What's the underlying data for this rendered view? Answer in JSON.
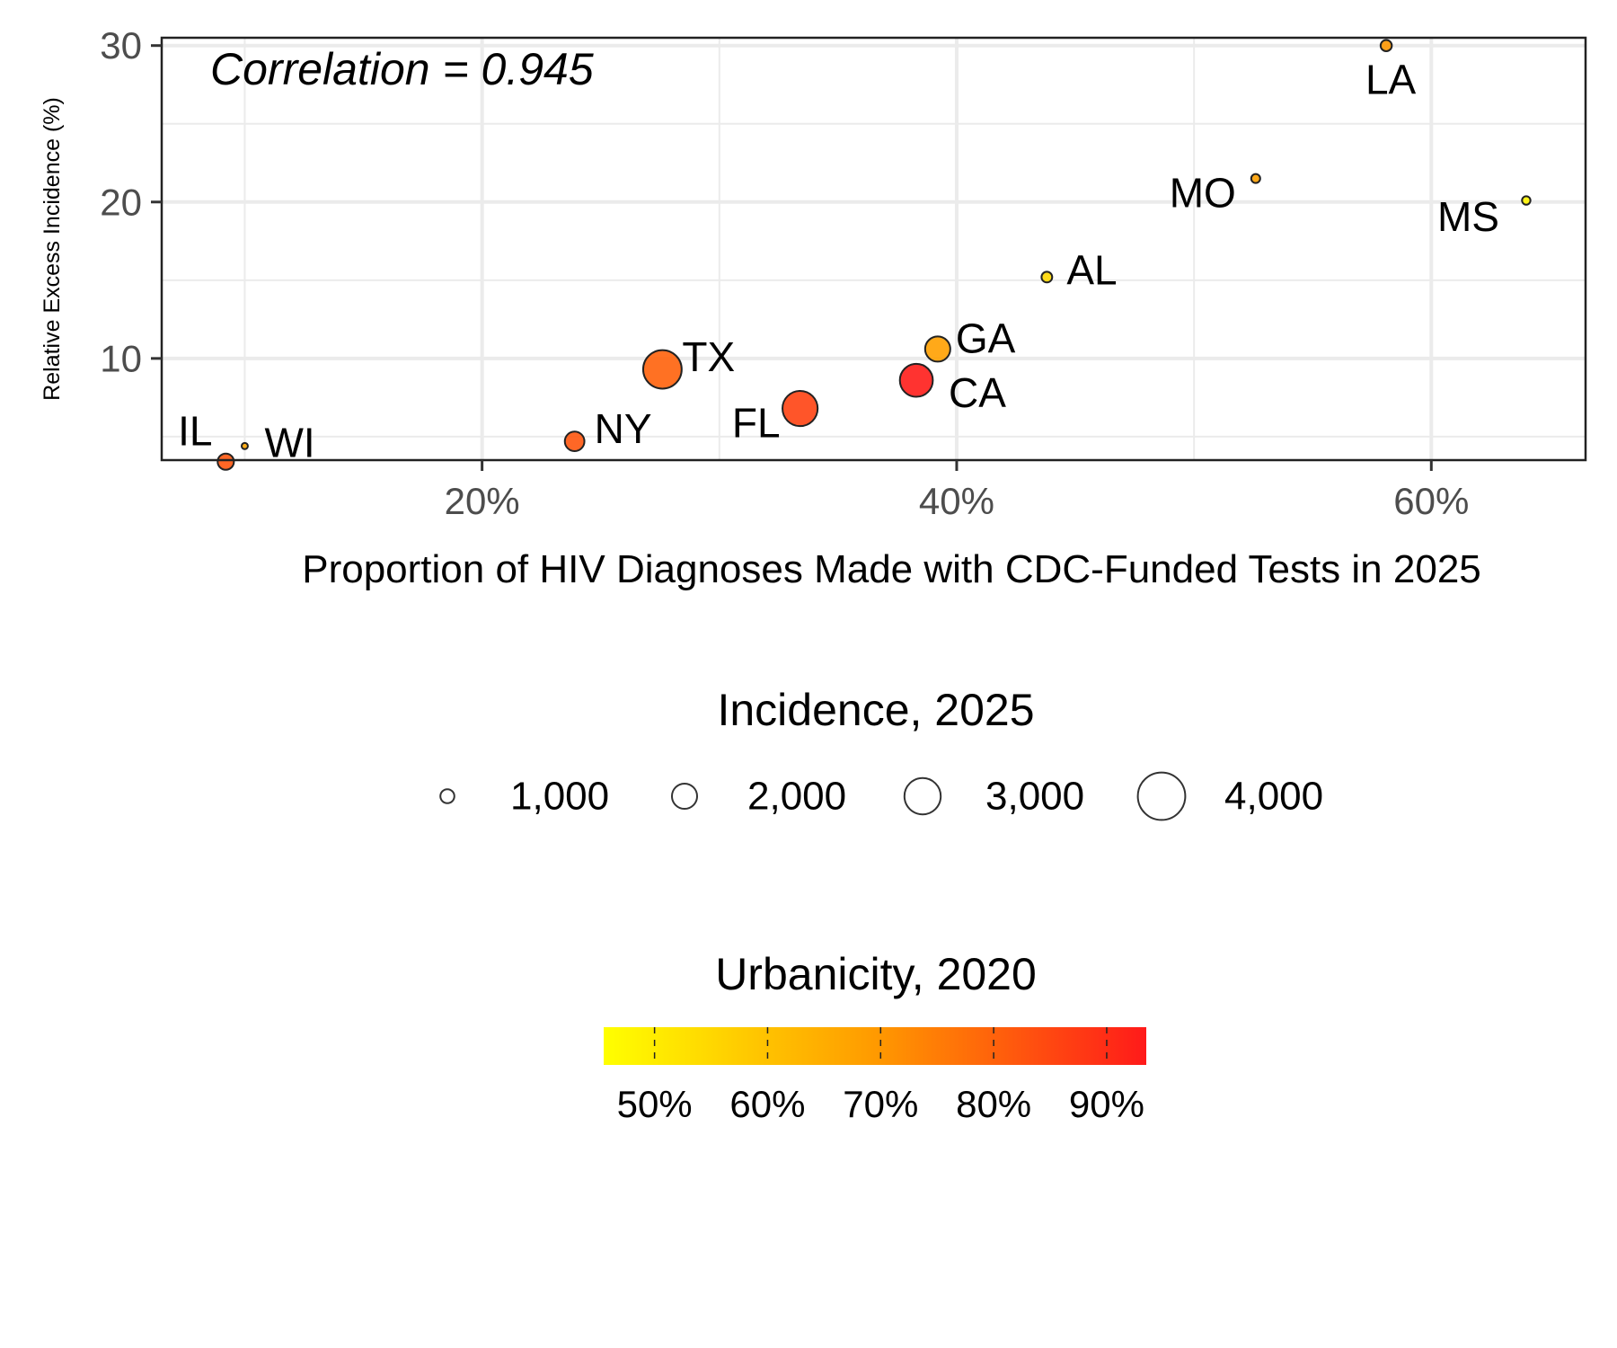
{
  "chart_data": {
    "type": "scatter",
    "title": "",
    "annotation": "Correlation = 0.945",
    "xlabel": "Proportion of HIV Diagnoses Made with CDC-Funded Tests in 2025",
    "ylabel": "Relative Excess Incidence (%)",
    "xlim": [
      0.065,
      0.665
    ],
    "ylim": [
      3.5,
      30.5
    ],
    "x_ticks": [
      0.2,
      0.4,
      0.6
    ],
    "x_tick_labels": [
      "20%",
      "40%",
      "60%"
    ],
    "y_ticks": [
      10,
      20,
      30
    ],
    "y_tick_labels": [
      "10",
      "20",
      "30"
    ],
    "grid": true,
    "points": [
      {
        "label": "IL",
        "x": 0.092,
        "y": 3.4,
        "incidence": 1200,
        "urbanicity": 0.82
      },
      {
        "label": "WI",
        "x": 0.1,
        "y": 4.4,
        "incidence": 300,
        "urbanicity": 0.67
      },
      {
        "label": "NY",
        "x": 0.239,
        "y": 4.7,
        "incidence": 1500,
        "urbanicity": 0.82
      },
      {
        "label": "TX",
        "x": 0.276,
        "y": 9.3,
        "incidence": 3200,
        "urbanicity": 0.8
      },
      {
        "label": "FL",
        "x": 0.334,
        "y": 6.8,
        "incidence": 2900,
        "urbanicity": 0.86
      },
      {
        "label": "CA",
        "x": 0.383,
        "y": 8.6,
        "incidence": 2700,
        "urbanicity": 0.93
      },
      {
        "label": "GA",
        "x": 0.392,
        "y": 10.6,
        "incidence": 2000,
        "urbanicity": 0.68
      },
      {
        "label": "AL",
        "x": 0.438,
        "y": 15.2,
        "incidence": 700,
        "urbanicity": 0.55
      },
      {
        "label": "MO",
        "x": 0.526,
        "y": 21.5,
        "incidence": 550,
        "urbanicity": 0.68
      },
      {
        "label": "LA",
        "x": 0.581,
        "y": 30.0,
        "incidence": 750,
        "urbanicity": 0.7
      },
      {
        "label": "MS",
        "x": 0.64,
        "y": 20.1,
        "incidence": 500,
        "urbanicity": 0.48
      }
    ],
    "legend_size": {
      "title": "Incidence, 2025",
      "values": [
        1000,
        2000,
        3000,
        4000
      ],
      "labels": [
        "1,000",
        "2,000",
        "3,000",
        "4,000"
      ]
    },
    "legend_color": {
      "title": "Urbanicity, 2020",
      "range": [
        0.455,
        0.935
      ],
      "ticks": [
        0.5,
        0.6,
        0.7,
        0.8,
        0.9
      ],
      "labels": [
        "50%",
        "60%",
        "70%",
        "80%",
        "90%"
      ],
      "low_color": "#FFFF00",
      "mid_color": "#FF9A00",
      "high_color": "#FF1A1A"
    },
    "legend_position": "bottom"
  }
}
